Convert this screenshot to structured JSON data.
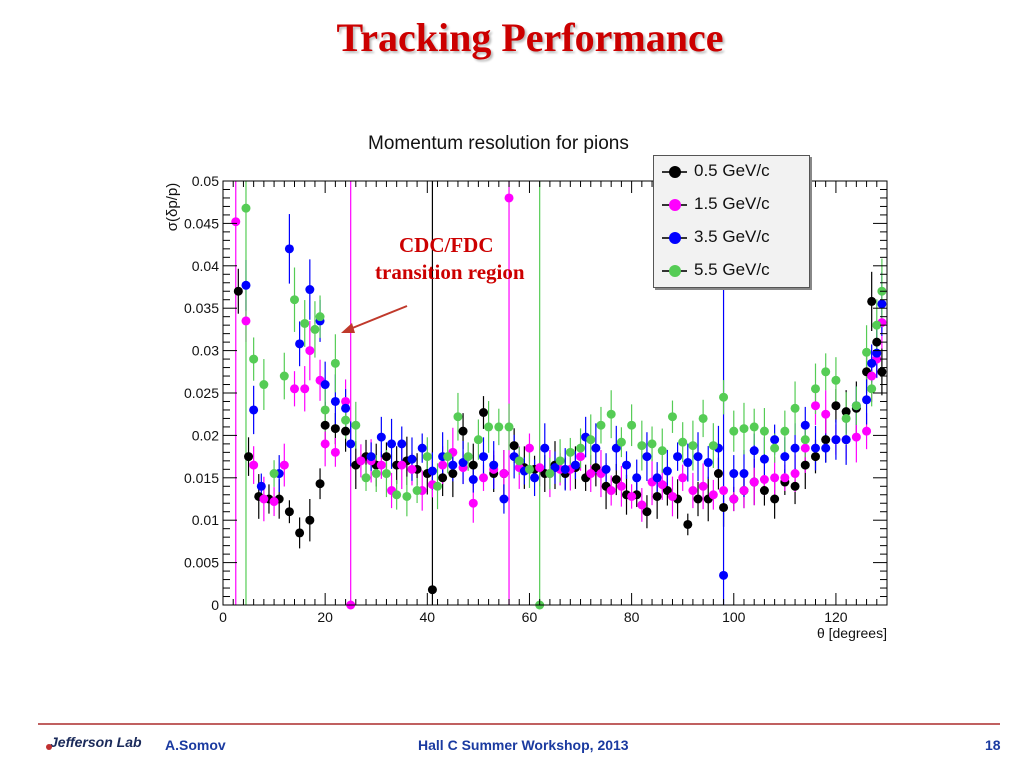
{
  "slide": {
    "title": "Tracking Performance",
    "annotation_line1": "CDC/FDC",
    "annotation_line2": "transition region",
    "footer_logo": "Jefferson Lab",
    "footer_author": "A.Somov",
    "footer_event": "Hall C Summer Workshop, 2013",
    "page_number": "18"
  },
  "colors": {
    "title": "#cc0000",
    "footer_text": "#1a3aa0",
    "annotation_arrow": "#c0392b"
  },
  "chart_data": {
    "type": "scatter",
    "title": "Momentum resolution for pions",
    "xlabel": "θ [degrees]",
    "ylabel": "σ(δp/p)",
    "xlim": [
      0,
      130
    ],
    "ylim": [
      0,
      0.05
    ],
    "x_ticks": [
      "0",
      "20",
      "40",
      "60",
      "80",
      "100",
      "120"
    ],
    "y_ticks": [
      "0",
      "0.005",
      "0.01",
      "0.015",
      "0.02",
      "0.025",
      "0.03",
      "0.035",
      "0.04",
      "0.045",
      "0.05"
    ],
    "legend_position": "top-right",
    "grid": false,
    "series": [
      {
        "name": "0.5 GeV/c",
        "color": "#000000",
        "points": [
          [
            3,
            0.037
          ],
          [
            5,
            0.0175
          ],
          [
            7,
            0.0128
          ],
          [
            9,
            0.0125
          ],
          [
            11,
            0.0125
          ],
          [
            13,
            0.011
          ],
          [
            15,
            0.0085
          ],
          [
            17,
            0.01
          ],
          [
            19,
            0.0143
          ],
          [
            20,
            0.0212
          ],
          [
            22,
            0.0208
          ],
          [
            24,
            0.0205
          ],
          [
            26,
            0.0165
          ],
          [
            28,
            0.0175
          ],
          [
            30,
            0.0165
          ],
          [
            32,
            0.0175
          ],
          [
            34,
            0.0165
          ],
          [
            36,
            0.017
          ],
          [
            38,
            0.016
          ],
          [
            40,
            0.0155
          ],
          [
            41,
            0.0018
          ],
          [
            43,
            0.015
          ],
          [
            45,
            0.0155
          ],
          [
            47,
            0.0205
          ],
          [
            49,
            0.0165
          ],
          [
            51,
            0.0227
          ],
          [
            53,
            0.0155
          ],
          [
            55,
            0.0155
          ],
          [
            57,
            0.0188
          ],
          [
            59,
            0.0162
          ],
          [
            61,
            0.016
          ],
          [
            63,
            0.0155
          ],
          [
            65,
            0.0165
          ],
          [
            67,
            0.0155
          ],
          [
            69,
            0.0162
          ],
          [
            71,
            0.015
          ],
          [
            73,
            0.0162
          ],
          [
            75,
            0.014
          ],
          [
            77,
            0.0148
          ],
          [
            79,
            0.013
          ],
          [
            81,
            0.013
          ],
          [
            83,
            0.011
          ],
          [
            85,
            0.0128
          ],
          [
            87,
            0.0135
          ],
          [
            89,
            0.0125
          ],
          [
            91,
            0.0095
          ],
          [
            93,
            0.0125
          ],
          [
            95,
            0.0125
          ],
          [
            97,
            0.0155
          ],
          [
            98,
            0.0115
          ],
          [
            100,
            0.0125
          ],
          [
            102,
            0.0135
          ],
          [
            104,
            0.0145
          ],
          [
            106,
            0.0135
          ],
          [
            108,
            0.0125
          ],
          [
            110,
            0.0145
          ],
          [
            112,
            0.014
          ],
          [
            114,
            0.0165
          ],
          [
            116,
            0.0175
          ],
          [
            118,
            0.0195
          ],
          [
            120,
            0.0235
          ],
          [
            122,
            0.0228
          ],
          [
            124,
            0.0232
          ],
          [
            126,
            0.0275
          ],
          [
            127,
            0.0358
          ],
          [
            128,
            0.031
          ],
          [
            129,
            0.0275
          ]
        ]
      },
      {
        "name": "1.5 GeV/c",
        "color": "#ff00ff",
        "points": [
          [
            2.5,
            0.0452
          ],
          [
            4.5,
            0.0335
          ],
          [
            6,
            0.0165
          ],
          [
            8,
            0.0125
          ],
          [
            10,
            0.0122
          ],
          [
            12,
            0.0165
          ],
          [
            14,
            0.0255
          ],
          [
            16,
            0.0255
          ],
          [
            17,
            0.03
          ],
          [
            19,
            0.0265
          ],
          [
            20,
            0.019
          ],
          [
            22,
            0.018
          ],
          [
            24,
            0.024
          ],
          [
            25,
            0.0
          ],
          [
            27,
            0.017
          ],
          [
            29,
            0.017
          ],
          [
            31,
            0.0165
          ],
          [
            33,
            0.0135
          ],
          [
            35,
            0.0165
          ],
          [
            37,
            0.016
          ],
          [
            39,
            0.0135
          ],
          [
            41,
            0.0142
          ],
          [
            43,
            0.0165
          ],
          [
            45,
            0.018
          ],
          [
            47,
            0.0162
          ],
          [
            49,
            0.012
          ],
          [
            51,
            0.015
          ],
          [
            53,
            0.016
          ],
          [
            55,
            0.0155
          ],
          [
            56,
            0.048
          ],
          [
            58,
            0.0162
          ],
          [
            60,
            0.0185
          ],
          [
            62,
            0.0162
          ],
          [
            64,
            0.0155
          ],
          [
            66,
            0.016
          ],
          [
            68,
            0.016
          ],
          [
            70,
            0.0175
          ],
          [
            72,
            0.0155
          ],
          [
            74,
            0.0155
          ],
          [
            76,
            0.0135
          ],
          [
            78,
            0.014
          ],
          [
            80,
            0.0128
          ],
          [
            82,
            0.0118
          ],
          [
            84,
            0.0145
          ],
          [
            86,
            0.0142
          ],
          [
            88,
            0.0128
          ],
          [
            90,
            0.015
          ],
          [
            92,
            0.0135
          ],
          [
            94,
            0.014
          ],
          [
            96,
            0.013
          ],
          [
            98,
            0.0135
          ],
          [
            100,
            0.0125
          ],
          [
            102,
            0.0135
          ],
          [
            104,
            0.0145
          ],
          [
            106,
            0.0148
          ],
          [
            108,
            0.015
          ],
          [
            110,
            0.015
          ],
          [
            112,
            0.0155
          ],
          [
            114,
            0.0185
          ],
          [
            116,
            0.0235
          ],
          [
            118,
            0.0225
          ],
          [
            120,
            0.0195
          ],
          [
            122,
            0.0195
          ],
          [
            124,
            0.0198
          ],
          [
            126,
            0.0205
          ],
          [
            127,
            0.027
          ],
          [
            128,
            0.029
          ],
          [
            129,
            0.0333
          ]
        ]
      },
      {
        "name": "3.5 GeV/c",
        "color": "#0000ff",
        "points": [
          [
            4.5,
            0.0377
          ],
          [
            6,
            0.023
          ],
          [
            7.5,
            0.014
          ],
          [
            11,
            0.0155
          ],
          [
            13,
            0.042
          ],
          [
            15,
            0.0308
          ],
          [
            17,
            0.0372
          ],
          [
            19,
            0.0335
          ],
          [
            20,
            0.026
          ],
          [
            22,
            0.024
          ],
          [
            24,
            0.0232
          ],
          [
            25,
            0.019
          ],
          [
            29,
            0.0175
          ],
          [
            31,
            0.0198
          ],
          [
            33,
            0.019
          ],
          [
            35,
            0.019
          ],
          [
            37,
            0.0172
          ],
          [
            39,
            0.0185
          ],
          [
            41,
            0.0158
          ],
          [
            43,
            0.0175
          ],
          [
            45,
            0.0165
          ],
          [
            47,
            0.0168
          ],
          [
            49,
            0.0148
          ],
          [
            51,
            0.0175
          ],
          [
            53,
            0.0165
          ],
          [
            55,
            0.0125
          ],
          [
            57,
            0.0175
          ],
          [
            59,
            0.0158
          ],
          [
            61,
            0.015
          ],
          [
            63,
            0.0185
          ],
          [
            65,
            0.0162
          ],
          [
            67,
            0.016
          ],
          [
            69,
            0.0165
          ],
          [
            71,
            0.0198
          ],
          [
            73,
            0.0185
          ],
          [
            75,
            0.016
          ],
          [
            77,
            0.0185
          ],
          [
            79,
            0.0165
          ],
          [
            81,
            0.015
          ],
          [
            83,
            0.0175
          ],
          [
            85,
            0.015
          ],
          [
            87,
            0.0158
          ],
          [
            89,
            0.0175
          ],
          [
            91,
            0.0168
          ],
          [
            93,
            0.0175
          ],
          [
            95,
            0.0168
          ],
          [
            97,
            0.0185
          ],
          [
            98,
            0.0035
          ],
          [
            100,
            0.0155
          ],
          [
            102,
            0.0155
          ],
          [
            104,
            0.0182
          ],
          [
            106,
            0.0172
          ],
          [
            108,
            0.0195
          ],
          [
            110,
            0.0175
          ],
          [
            112,
            0.0185
          ],
          [
            114,
            0.0212
          ],
          [
            116,
            0.0185
          ],
          [
            118,
            0.0185
          ],
          [
            120,
            0.0195
          ],
          [
            122,
            0.0195
          ],
          [
            124,
            0.0235
          ],
          [
            126,
            0.0242
          ],
          [
            127,
            0.0285
          ],
          [
            128,
            0.0297
          ],
          [
            129,
            0.0355
          ]
        ]
      },
      {
        "name": "5.5 GeV/c",
        "color": "#55cc55",
        "points": [
          [
            4.5,
            0.0468
          ],
          [
            6,
            0.029
          ],
          [
            8,
            0.026
          ],
          [
            10,
            0.0155
          ],
          [
            12,
            0.027
          ],
          [
            14,
            0.036
          ],
          [
            16,
            0.0332
          ],
          [
            18,
            0.0325
          ],
          [
            19,
            0.034
          ],
          [
            20,
            0.023
          ],
          [
            22,
            0.0285
          ],
          [
            24,
            0.0218
          ],
          [
            26,
            0.0212
          ],
          [
            28,
            0.015
          ],
          [
            30,
            0.0155
          ],
          [
            32,
            0.0155
          ],
          [
            34,
            0.013
          ],
          [
            36,
            0.0128
          ],
          [
            38,
            0.0135
          ],
          [
            40,
            0.0175
          ],
          [
            42,
            0.014
          ],
          [
            44,
            0.0175
          ],
          [
            46,
            0.0222
          ],
          [
            48,
            0.0175
          ],
          [
            50,
            0.0195
          ],
          [
            52,
            0.021
          ],
          [
            54,
            0.021
          ],
          [
            56,
            0.021
          ],
          [
            58,
            0.017
          ],
          [
            60,
            0.016
          ],
          [
            62,
            0.0
          ],
          [
            64,
            0.0155
          ],
          [
            66,
            0.017
          ],
          [
            68,
            0.018
          ],
          [
            70,
            0.0185
          ],
          [
            72,
            0.0195
          ],
          [
            74,
            0.0212
          ],
          [
            76,
            0.0225
          ],
          [
            78,
            0.0192
          ],
          [
            80,
            0.0212
          ],
          [
            82,
            0.0188
          ],
          [
            84,
            0.019
          ],
          [
            86,
            0.0182
          ],
          [
            88,
            0.0222
          ],
          [
            90,
            0.0192
          ],
          [
            92,
            0.0188
          ],
          [
            94,
            0.022
          ],
          [
            96,
            0.0188
          ],
          [
            98,
            0.0245
          ],
          [
            100,
            0.0205
          ],
          [
            102,
            0.0208
          ],
          [
            104,
            0.021
          ],
          [
            106,
            0.0205
          ],
          [
            108,
            0.0185
          ],
          [
            110,
            0.0205
          ],
          [
            112,
            0.0232
          ],
          [
            114,
            0.0195
          ],
          [
            116,
            0.0255
          ],
          [
            118,
            0.0275
          ],
          [
            120,
            0.0265
          ],
          [
            122,
            0.022
          ],
          [
            124,
            0.0235
          ],
          [
            126,
            0.0298
          ],
          [
            127,
            0.0255
          ],
          [
            128,
            0.033
          ],
          [
            129,
            0.037
          ]
        ]
      }
    ]
  }
}
